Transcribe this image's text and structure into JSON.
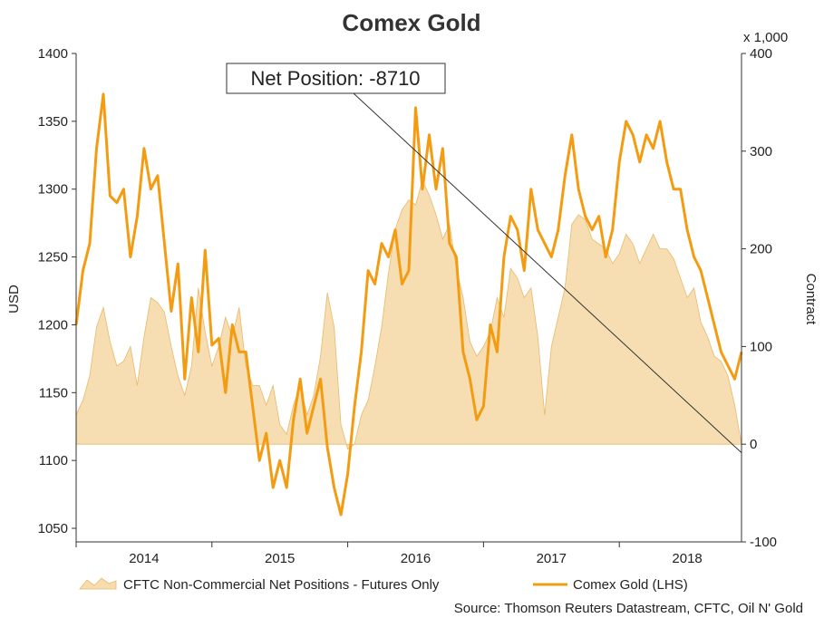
{
  "chart_data": {
    "type": "line",
    "title": "Comex Gold",
    "left_axis": {
      "label": "USD",
      "min": 1040,
      "max": 1400,
      "ticks": [
        1050,
        1100,
        1150,
        1200,
        1250,
        1300,
        1350,
        1400
      ]
    },
    "right_axis": {
      "label": "Contract",
      "unit_label": "x 1,000",
      "min": -100,
      "max": 400,
      "ticks": [
        -100,
        0,
        100,
        200,
        300,
        400
      ]
    },
    "x_axis": {
      "min": 2013.5,
      "max": 2018.4,
      "year_labels": [
        "2014",
        "2015",
        "2016",
        "2017",
        "2018"
      ],
      "year_label_positions": [
        2014.0,
        2015.0,
        2016.0,
        2017.0,
        2018.0
      ],
      "tick_positions": [
        2013.5,
        2014.5,
        2015.5,
        2016.5,
        2017.5
      ]
    },
    "callout": {
      "text": "Net Position: -8710",
      "target_x": 2018.4,
      "target_y": -8.7
    },
    "source": "Source: Thomson Reuters Datastream, CFTC, Oil N' Gold",
    "colors": {
      "gold_line": "#f39c12",
      "net_fill": "#f6dcae",
      "net_edge": "#e8b96a"
    },
    "series": [
      {
        "name": "CFTC Non-Commercial Net Positions - Futures Only",
        "axis": "right",
        "kind": "area",
        "x": [
          2013.5,
          2013.55,
          2013.6,
          2013.65,
          2013.7,
          2013.75,
          2013.8,
          2013.85,
          2013.9,
          2013.95,
          2014.0,
          2014.05,
          2014.1,
          2014.15,
          2014.2,
          2014.25,
          2014.3,
          2014.35,
          2014.4,
          2014.45,
          2014.5,
          2014.55,
          2014.6,
          2014.65,
          2014.7,
          2014.75,
          2014.8,
          2014.85,
          2014.9,
          2014.95,
          2015.0,
          2015.05,
          2015.1,
          2015.15,
          2015.2,
          2015.25,
          2015.3,
          2015.35,
          2015.4,
          2015.45,
          2015.5,
          2015.55,
          2015.6,
          2015.65,
          2015.7,
          2015.75,
          2015.8,
          2015.85,
          2015.9,
          2015.95,
          2016.0,
          2016.05,
          2016.1,
          2016.15,
          2016.2,
          2016.25,
          2016.3,
          2016.35,
          2016.4,
          2016.45,
          2016.5,
          2016.55,
          2016.6,
          2016.65,
          2016.7,
          2016.75,
          2016.8,
          2016.85,
          2016.9,
          2016.95,
          2017.0,
          2017.05,
          2017.1,
          2017.15,
          2017.2,
          2017.25,
          2017.3,
          2017.35,
          2017.4,
          2017.45,
          2017.5,
          2017.55,
          2017.6,
          2017.65,
          2017.7,
          2017.75,
          2017.8,
          2017.85,
          2017.9,
          2017.95,
          2018.0,
          2018.05,
          2018.1,
          2018.15,
          2018.2,
          2018.25,
          2018.3,
          2018.35,
          2018.4
        ],
        "values": [
          30,
          45,
          70,
          120,
          140,
          105,
          80,
          85,
          100,
          60,
          110,
          150,
          145,
          135,
          100,
          70,
          50,
          80,
          160,
          115,
          80,
          100,
          130,
          110,
          140,
          80,
          60,
          60,
          40,
          60,
          20,
          10,
          40,
          60,
          30,
          50,
          90,
          155,
          120,
          20,
          -5,
          0,
          30,
          45,
          80,
          120,
          175,
          220,
          240,
          250,
          245,
          270,
          255,
          235,
          210,
          225,
          180,
          150,
          105,
          90,
          100,
          115,
          150,
          130,
          180,
          170,
          150,
          160,
          110,
          30,
          100,
          130,
          160,
          225,
          235,
          230,
          210,
          205,
          200,
          185,
          195,
          215,
          205,
          185,
          200,
          215,
          200,
          200,
          190,
          170,
          150,
          160,
          125,
          110,
          90,
          85,
          70,
          40,
          0
        ]
      },
      {
        "name": "Comex Gold (LHS)",
        "axis": "left",
        "kind": "line",
        "x": [
          2013.5,
          2013.55,
          2013.6,
          2013.65,
          2013.7,
          2013.75,
          2013.8,
          2013.85,
          2013.9,
          2013.95,
          2014.0,
          2014.05,
          2014.1,
          2014.15,
          2014.2,
          2014.25,
          2014.3,
          2014.35,
          2014.4,
          2014.45,
          2014.5,
          2014.55,
          2014.6,
          2014.65,
          2014.7,
          2014.75,
          2014.8,
          2014.85,
          2014.9,
          2014.95,
          2015.0,
          2015.05,
          2015.1,
          2015.15,
          2015.2,
          2015.25,
          2015.3,
          2015.35,
          2015.4,
          2015.45,
          2015.5,
          2015.55,
          2015.6,
          2015.65,
          2015.7,
          2015.75,
          2015.8,
          2015.85,
          2015.9,
          2015.95,
          2016.0,
          2016.05,
          2016.1,
          2016.15,
          2016.2,
          2016.25,
          2016.3,
          2016.35,
          2016.4,
          2016.45,
          2016.5,
          2016.55,
          2016.6,
          2016.65,
          2016.7,
          2016.75,
          2016.8,
          2016.85,
          2016.9,
          2016.95,
          2017.0,
          2017.05,
          2017.1,
          2017.15,
          2017.2,
          2017.25,
          2017.3,
          2017.35,
          2017.4,
          2017.45,
          2017.5,
          2017.55,
          2017.6,
          2017.65,
          2017.7,
          2017.75,
          2017.8,
          2017.85,
          2017.9,
          2017.95,
          2018.0,
          2018.05,
          2018.1,
          2018.15,
          2018.2,
          2018.25,
          2018.3,
          2018.35,
          2018.4
        ],
        "values": [
          1200,
          1240,
          1260,
          1330,
          1370,
          1295,
          1290,
          1300,
          1250,
          1280,
          1330,
          1300,
          1310,
          1260,
          1210,
          1245,
          1160,
          1220,
          1180,
          1255,
          1185,
          1190,
          1150,
          1200,
          1180,
          1180,
          1140,
          1100,
          1120,
          1080,
          1100,
          1080,
          1130,
          1160,
          1120,
          1140,
          1160,
          1110,
          1080,
          1060,
          1090,
          1140,
          1180,
          1240,
          1230,
          1260,
          1250,
          1270,
          1230,
          1240,
          1360,
          1300,
          1340,
          1300,
          1330,
          1260,
          1250,
          1180,
          1160,
          1130,
          1140,
          1200,
          1180,
          1250,
          1280,
          1270,
          1240,
          1300,
          1270,
          1260,
          1250,
          1270,
          1310,
          1340,
          1300,
          1280,
          1270,
          1280,
          1250,
          1270,
          1320,
          1350,
          1340,
          1320,
          1340,
          1330,
          1350,
          1320,
          1300,
          1300,
          1270,
          1250,
          1240,
          1220,
          1200,
          1180,
          1170,
          1160,
          1180
        ]
      }
    ]
  }
}
